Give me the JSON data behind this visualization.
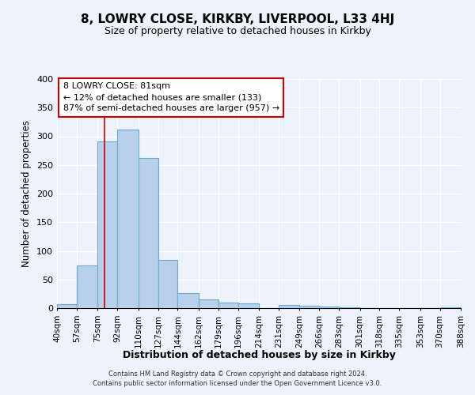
{
  "title": "8, LOWRY CLOSE, KIRKBY, LIVERPOOL, L33 4HJ",
  "subtitle": "Size of property relative to detached houses in Kirkby",
  "xlabel": "Distribution of detached houses by size in Kirkby",
  "ylabel": "Number of detached properties",
  "bar_edges": [
    40,
    57,
    75,
    92,
    110,
    127,
    144,
    162,
    179,
    196,
    214,
    231,
    249,
    266,
    283,
    301,
    318,
    335,
    353,
    370,
    388
  ],
  "bar_heights": [
    7,
    75,
    291,
    312,
    262,
    84,
    26,
    15,
    9,
    8,
    0,
    5,
    4,
    3,
    1,
    0,
    0,
    0,
    0,
    2
  ],
  "bar_facecolor": "#b8d0ea",
  "bar_edgecolor": "#6aaad4",
  "tick_labels": [
    "40sqm",
    "57sqm",
    "75sqm",
    "92sqm",
    "110sqm",
    "127sqm",
    "144sqm",
    "162sqm",
    "179sqm",
    "196sqm",
    "214sqm",
    "231sqm",
    "249sqm",
    "266sqm",
    "283sqm",
    "301sqm",
    "318sqm",
    "335sqm",
    "353sqm",
    "370sqm",
    "388sqm"
  ],
  "ylim": [
    0,
    400
  ],
  "yticks": [
    0,
    50,
    100,
    150,
    200,
    250,
    300,
    350,
    400
  ],
  "vline_x": 81,
  "vline_color": "#cc0000",
  "annotation_title": "8 LOWRY CLOSE: 81sqm",
  "annotation_line1": "← 12% of detached houses are smaller (133)",
  "annotation_line2": "87% of semi-detached houses are larger (957) →",
  "annotation_box_facecolor": "#ffffff",
  "annotation_box_edgecolor": "#cc0000",
  "background_color": "#eef2fb",
  "grid_color": "#ffffff",
  "footer1": "Contains HM Land Registry data © Crown copyright and database right 2024.",
  "footer2": "Contains public sector information licensed under the Open Government Licence v3.0."
}
